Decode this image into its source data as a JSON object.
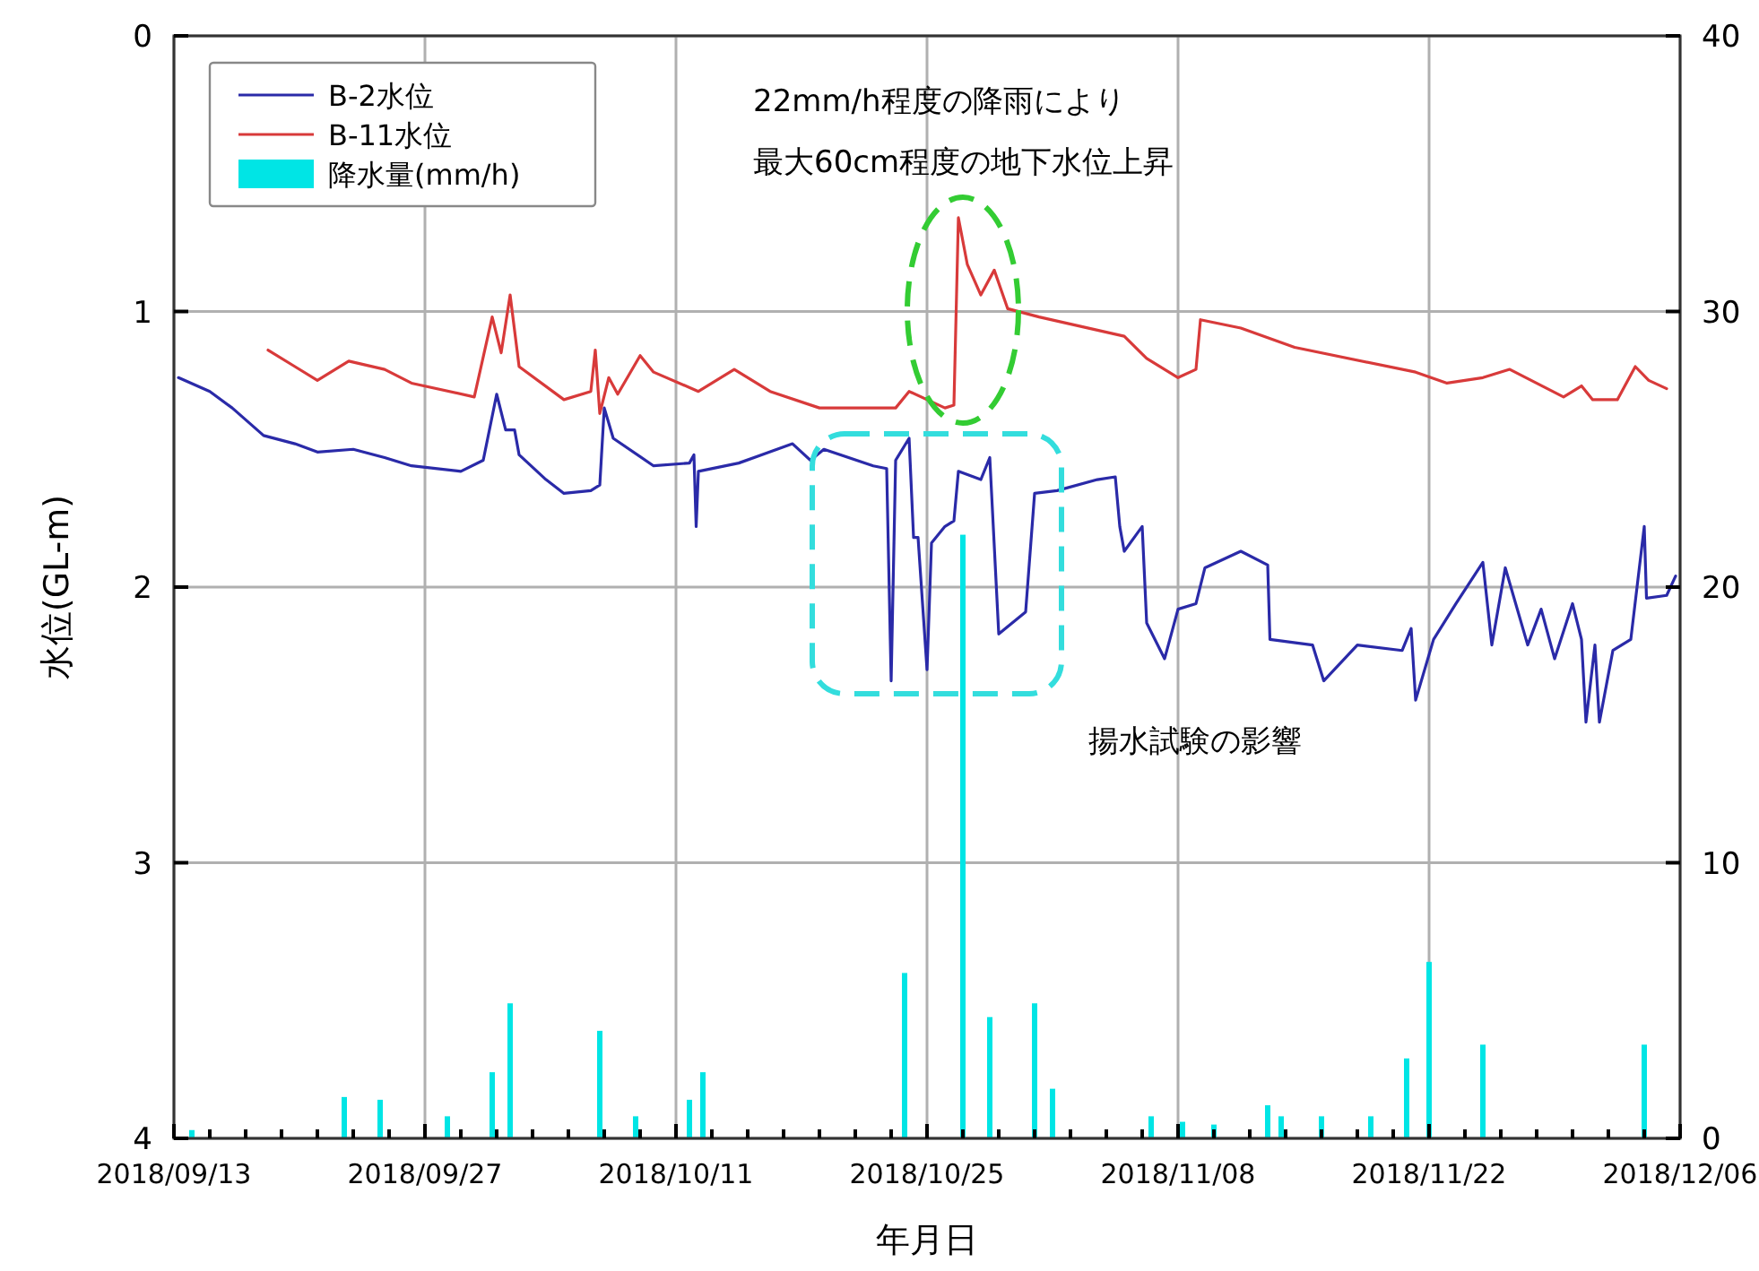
{
  "chart_data": {
    "type": "line",
    "xlabel": "年月日",
    "ylabel": "水位(GL-m)",
    "xlim": [
      "2018-09-13",
      "2018-12-06"
    ],
    "xticks": [
      {
        "value": "2018-09-13",
        "label": "2018/09/13"
      },
      {
        "value": "2018-09-15",
        "label": null
      },
      {
        "value": "2018-09-17",
        "label": null
      },
      {
        "value": "2018-09-19",
        "label": null
      },
      {
        "value": "2018-09-21",
        "label": null
      },
      {
        "value": "2018-09-23",
        "label": null
      },
      {
        "value": "2018-09-25",
        "label": null
      },
      {
        "value": "2018-09-27",
        "label": "2018/09/27"
      },
      {
        "value": "2018-09-29",
        "label": null
      },
      {
        "value": "2018-10-01",
        "label": null
      },
      {
        "value": "2018-10-03",
        "label": null
      },
      {
        "value": "2018-10-05",
        "label": null
      },
      {
        "value": "2018-10-07",
        "label": null
      },
      {
        "value": "2018-10-09",
        "label": null
      },
      {
        "value": "2018-10-11",
        "label": "2018/10/11"
      },
      {
        "value": "2018-10-13",
        "label": null
      },
      {
        "value": "2018-10-15",
        "label": null
      },
      {
        "value": "2018-10-17",
        "label": null
      },
      {
        "value": "2018-10-19",
        "label": null
      },
      {
        "value": "2018-10-21",
        "label": null
      },
      {
        "value": "2018-10-23",
        "label": null
      },
      {
        "value": "2018-10-25",
        "label": "2018/10/25"
      },
      {
        "value": "2018-10-27",
        "label": null
      },
      {
        "value": "2018-10-29",
        "label": null
      },
      {
        "value": "2018-10-31",
        "label": null
      },
      {
        "value": "2018-11-02",
        "label": null
      },
      {
        "value": "2018-11-04",
        "label": null
      },
      {
        "value": "2018-11-06",
        "label": null
      },
      {
        "value": "2018-11-08",
        "label": "2018/11/08"
      },
      {
        "value": "2018-11-10",
        "label": null
      },
      {
        "value": "2018-11-12",
        "label": null
      },
      {
        "value": "2018-11-14",
        "label": null
      },
      {
        "value": "2018-11-16",
        "label": null
      },
      {
        "value": "2018-11-18",
        "label": null
      },
      {
        "value": "2018-11-20",
        "label": null
      },
      {
        "value": "2018-11-22",
        "label": "2018/11/22"
      },
      {
        "value": "2018-11-24",
        "label": null
      },
      {
        "value": "2018-11-26",
        "label": null
      },
      {
        "value": "2018-11-28",
        "label": null
      },
      {
        "value": "2018-11-30",
        "label": null
      },
      {
        "value": "2018-12-02",
        "label": null
      },
      {
        "value": "2018-12-04",
        "label": null
      },
      {
        "value": "2018-12-06",
        "label": "2018/12/06"
      }
    ],
    "ylim": [
      4,
      0
    ],
    "yticks": [
      0,
      1,
      2,
      3,
      4
    ],
    "y2lim": [
      0,
      40
    ],
    "y2ticks": [
      0,
      10,
      20,
      30,
      40
    ],
    "grid": true,
    "legend": "top left",
    "annotations": [
      "22mm/h程度の降雨により",
      "最大60cm程度の地下水位上昇",
      "揚水試験の影響"
    ],
    "series": [
      {
        "name": "B-2水位",
        "color": "#2a2aa8",
        "x": [
          "2018-09-13T06:00",
          "2018-09-15T00:00",
          "2018-09-16T06:00",
          "2018-09-18T00:00",
          "2018-09-19T18:00",
          "2018-09-21T00:00",
          "2018-09-23T00:00",
          "2018-09-24T18:00",
          "2018-09-26T06:00",
          "2018-09-29T00:00",
          "2018-09-30T06:00",
          "2018-10-01T00:00",
          "2018-10-01T12:00",
          "2018-10-02T00:00",
          "2018-10-02T06:00",
          "2018-10-03T18:00",
          "2018-10-04T18:00",
          "2018-10-06T06:00",
          "2018-10-06T18:00",
          "2018-10-07T00:00",
          "2018-10-07T12:00",
          "2018-10-09T18:00",
          "2018-10-11T18:00",
          "2018-10-12T00:00",
          "2018-10-12T03:00",
          "2018-10-12T06:00",
          "2018-10-14T12:00",
          "2018-10-17T12:00",
          "2018-10-18T12:00",
          "2018-10-19T06:00",
          "2018-10-22T00:00",
          "2018-10-22T18:00",
          "2018-10-23T00:00",
          "2018-10-23T06:00",
          "2018-10-24T00:00",
          "2018-10-24T06:00",
          "2018-10-24T12:00",
          "2018-10-25T00:00",
          "2018-10-25T06:00",
          "2018-10-26T00:00",
          "2018-10-26T12:00",
          "2018-10-26T18:00",
          "2018-10-28T00:00",
          "2018-10-28T12:00",
          "2018-10-29T00:00",
          "2018-10-30T12:00",
          "2018-10-31T00:00",
          "2018-11-01T06:00",
          "2018-11-03T12:00",
          "2018-11-04T12:00",
          "2018-11-04T18:00",
          "2018-11-05T00:00",
          "2018-11-06T00:00",
          "2018-11-06T06:00",
          "2018-11-07T06:00",
          "2018-11-08T00:00",
          "2018-11-09T00:00",
          "2018-11-09T12:00",
          "2018-11-11T12:00",
          "2018-11-13T00:00",
          "2018-11-13T03:00",
          "2018-11-15T12:00",
          "2018-11-16T03:00",
          "2018-11-18T00:00",
          "2018-11-20T12:00",
          "2018-11-21T00:00",
          "2018-11-21T06:00",
          "2018-11-22T06:00",
          "2018-11-23T12:00",
          "2018-11-25T00:00",
          "2018-11-25T12:00",
          "2018-11-26T06:00",
          "2018-11-27T12:00",
          "2018-11-28T06:00",
          "2018-11-29T00:00",
          "2018-11-30T00:00",
          "2018-11-30T12:00",
          "2018-11-30T18:00",
          "2018-12-01T06:00",
          "2018-12-01T12:00",
          "2018-12-02T06:00",
          "2018-12-03T06:00",
          "2018-12-04T00:00",
          "2018-12-04T03:00",
          "2018-12-05T06:00",
          "2018-12-05T18:00"
        ],
        "values": [
          1.24,
          1.29,
          1.35,
          1.45,
          1.48,
          1.51,
          1.5,
          1.53,
          1.56,
          1.58,
          1.54,
          1.3,
          1.43,
          1.43,
          1.52,
          1.61,
          1.66,
          1.65,
          1.63,
          1.35,
          1.46,
          1.56,
          1.55,
          1.52,
          1.78,
          1.58,
          1.55,
          1.48,
          1.54,
          1.5,
          1.56,
          1.57,
          2.34,
          1.54,
          1.46,
          1.82,
          1.82,
          2.3,
          1.84,
          1.78,
          1.76,
          1.58,
          1.61,
          1.53,
          2.17,
          2.09,
          1.66,
          1.65,
          1.61,
          1.6,
          1.78,
          1.87,
          1.78,
          2.13,
          2.26,
          2.08,
          2.06,
          1.93,
          1.87,
          1.92,
          2.19,
          2.21,
          2.34,
          2.21,
          2.23,
          2.15,
          2.41,
          2.19,
          2.06,
          1.91,
          2.21,
          1.93,
          2.21,
          2.08,
          2.26,
          2.06,
          2.19,
          2.49,
          2.21,
          2.49,
          2.23,
          2.19,
          1.78,
          2.04,
          2.03,
          1.96
        ]
      },
      {
        "name": "B-11水位",
        "color": "#d83a3a",
        "x": [
          "2018-09-18T06:00",
          "2018-09-19T18:00",
          "2018-09-21T00:00",
          "2018-09-22T18:00",
          "2018-09-24T18:00",
          "2018-09-26T06:00",
          "2018-09-29T18:00",
          "2018-09-30T18:00",
          "2018-10-01T06:00",
          "2018-10-01T18:00",
          "2018-10-02T06:00",
          "2018-10-04T18:00",
          "2018-10-06T06:00",
          "2018-10-06T12:00",
          "2018-10-06T18:00",
          "2018-10-07T06:00",
          "2018-10-07T18:00",
          "2018-10-09T00:00",
          "2018-10-09T18:00",
          "2018-10-12T06:00",
          "2018-10-14T06:00",
          "2018-10-16T06:00",
          "2018-10-19T00:00",
          "2018-10-23T06:00",
          "2018-10-24T00:00",
          "2018-10-26T00:00",
          "2018-10-26T12:00",
          "2018-10-26T18:00",
          "2018-10-27T06:00",
          "2018-10-28T00:00",
          "2018-10-28T18:00",
          "2018-10-29T12:00",
          "2018-10-31T06:00",
          "2018-11-05T00:00",
          "2018-11-06T06:00",
          "2018-11-08T00:00",
          "2018-11-09T00:00",
          "2018-11-09T06:00",
          "2018-11-11T12:00",
          "2018-11-14T12:00",
          "2018-11-21T06:00",
          "2018-11-23T00:00",
          "2018-11-25T00:00",
          "2018-11-26T12:00",
          "2018-11-29T12:00",
          "2018-11-30T12:00",
          "2018-12-01T03:00",
          "2018-12-02T12:00",
          "2018-12-03T00:00",
          "2018-12-03T12:00",
          "2018-12-04T06:00",
          "2018-12-05T06:00"
        ],
        "values": [
          1.14,
          1.2,
          1.25,
          1.18,
          1.21,
          1.26,
          1.31,
          1.02,
          1.15,
          0.94,
          1.2,
          1.32,
          1.29,
          1.14,
          1.37,
          1.24,
          1.3,
          1.16,
          1.22,
          1.29,
          1.21,
          1.29,
          1.35,
          1.35,
          1.29,
          1.35,
          1.34,
          0.66,
          0.83,
          0.94,
          0.85,
          0.99,
          1.02,
          1.09,
          1.17,
          1.24,
          1.21,
          1.03,
          1.06,
          1.13,
          1.22,
          1.26,
          1.24,
          1.21,
          1.31,
          1.27,
          1.32,
          1.32,
          1.26,
          1.2,
          1.25,
          1.28
        ]
      },
      {
        "name": "降水量(mm/h)",
        "type": "bar",
        "axis": "y2",
        "color": "#00e5e5",
        "x": [
          "2018-09-14T00:00",
          "2018-09-22T12:00",
          "2018-09-24T12:00",
          "2018-09-28T06:00",
          "2018-09-30T18:00",
          "2018-10-01T18:00",
          "2018-10-06T18:00",
          "2018-10-08T18:00",
          "2018-10-11T18:00",
          "2018-10-12T12:00",
          "2018-10-23T18:00",
          "2018-10-27T00:00",
          "2018-10-28T12:00",
          "2018-10-31T00:00",
          "2018-11-01T00:00",
          "2018-11-06T12:00",
          "2018-11-08T06:00",
          "2018-11-10T00:00",
          "2018-11-13T00:00",
          "2018-11-13T18:00",
          "2018-11-16T00:00",
          "2018-11-18T18:00",
          "2018-11-20T18:00",
          "2018-11-22T00:00",
          "2018-11-25T00:00",
          "2018-12-04T00:00"
        ],
        "values": [
          0.3,
          1.5,
          1.4,
          0.8,
          2.4,
          4.9,
          3.9,
          0.8,
          1.4,
          2.4,
          6.0,
          21.9,
          4.4,
          4.9,
          1.8,
          0.8,
          0.6,
          0.5,
          1.2,
          0.8,
          0.8,
          0.8,
          2.9,
          6.4,
          3.4,
          3.4
        ]
      }
    ]
  }
}
